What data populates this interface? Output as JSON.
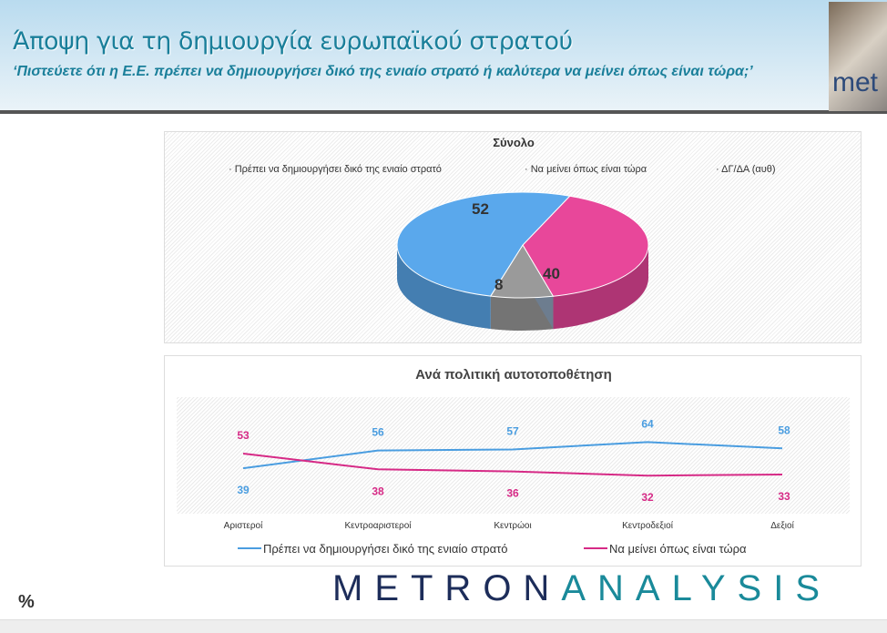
{
  "header": {
    "title": "Άποψη για τη δημιουργία ευρωπαϊκού στρατού",
    "subtitle": "‘Πιστεύετε ότι η Ε.Ε. πρέπει να δημιουργήσει δικό της ενιαίο στρατό ή καλύτερα να μείνει όπως είναι τώρα;’",
    "logo_text": "met"
  },
  "chart_data": [
    {
      "type": "pie",
      "title": "Σύνολο",
      "legend_position": "top",
      "categories": [
        "Πρέπει να δημιουργήσει δικό της ενιαίο στρατό",
        "Να μείνει όπως είναι τώρα",
        "ΔΓ/ΔΑ (αυθ)"
      ],
      "values": [
        52,
        40,
        8
      ],
      "colors": [
        "#5aa8ec",
        "#e8479a",
        "#9a9a9a"
      ]
    },
    {
      "type": "line",
      "title": "Ανά πολιτική αυτοτοποθέτηση",
      "categories": [
        "Αριστεροί",
        "Κεντροαριστεροί",
        "Κεντρώοι",
        "Κεντροδεξιοί",
        "Δεξιοί"
      ],
      "ylim": [
        0,
        100
      ],
      "legend_position": "bottom",
      "series": [
        {
          "name": "Πρέπει να δημιουργήσει δικό της ενιαίο στρατό",
          "values": [
            39,
            56,
            57,
            64,
            58
          ],
          "color": "#4a9de0"
        },
        {
          "name": "Να μείνει όπως είναι τώρα",
          "values": [
            53,
            38,
            36,
            32,
            33
          ],
          "color": "#d62a86"
        }
      ]
    }
  ],
  "footer": {
    "unit": "%",
    "brand_a": "METRON",
    "brand_b": "ANALYSIS"
  }
}
